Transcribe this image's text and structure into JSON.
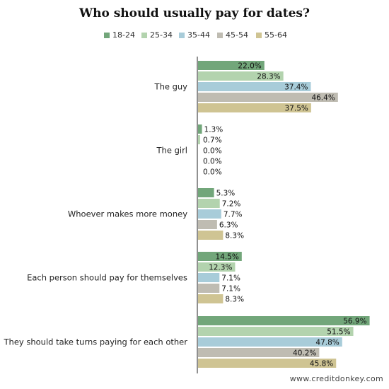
{
  "title": "Who should usually pay for dates?",
  "footer": "www.creditdonkey.com",
  "colors": {
    "18-24": "#72a67a",
    "25-34": "#b3d3ae",
    "35-44": "#a8ccd9",
    "45-54": "#bfbcb2",
    "55-64": "#cfc493"
  },
  "chart_data": {
    "type": "bar",
    "orientation": "horizontal",
    "title": "Who should usually pay for dates?",
    "categories": [
      "The guy",
      "The girl",
      "Whoever makes more money",
      "Each person should pay for themselves",
      "They should take turns paying for each other"
    ],
    "series": [
      {
        "name": "18-24",
        "color": "#72a67a",
        "values": [
          22.0,
          1.3,
          5.3,
          14.5,
          56.9
        ],
        "labels": [
          "22.0%",
          "1.3%",
          "5.3%",
          "14.5%",
          "56.9%"
        ]
      },
      {
        "name": "25-34",
        "color": "#b3d3ae",
        "values": [
          28.3,
          0.7,
          7.2,
          12.3,
          51.5
        ],
        "labels": [
          "28.3%",
          "0.7%",
          "7.2%",
          "12.3%",
          "51.5%"
        ]
      },
      {
        "name": "35-44",
        "color": "#a8ccd9",
        "values": [
          37.4,
          0.0,
          7.7,
          7.1,
          47.8
        ],
        "labels": [
          "37.4%",
          "0.0%",
          "7.7%",
          "7.1%",
          "47.8%"
        ]
      },
      {
        "name": "45-54",
        "color": "#bfbcb2",
        "values": [
          46.4,
          0.0,
          6.3,
          7.1,
          40.2
        ],
        "labels": [
          "46.4%",
          "0.0%",
          "6.3%",
          "7.1%",
          "40.2%"
        ]
      },
      {
        "name": "55-64",
        "color": "#cfc493",
        "values": [
          37.5,
          0.0,
          8.3,
          8.3,
          45.8
        ],
        "labels": [
          "37.5%",
          "0.0%",
          "8.3%",
          "8.3%",
          "45.8%"
        ]
      }
    ],
    "xlim": [
      0,
      57
    ],
    "grid": false,
    "legend": "top-center",
    "value_labels": true
  }
}
